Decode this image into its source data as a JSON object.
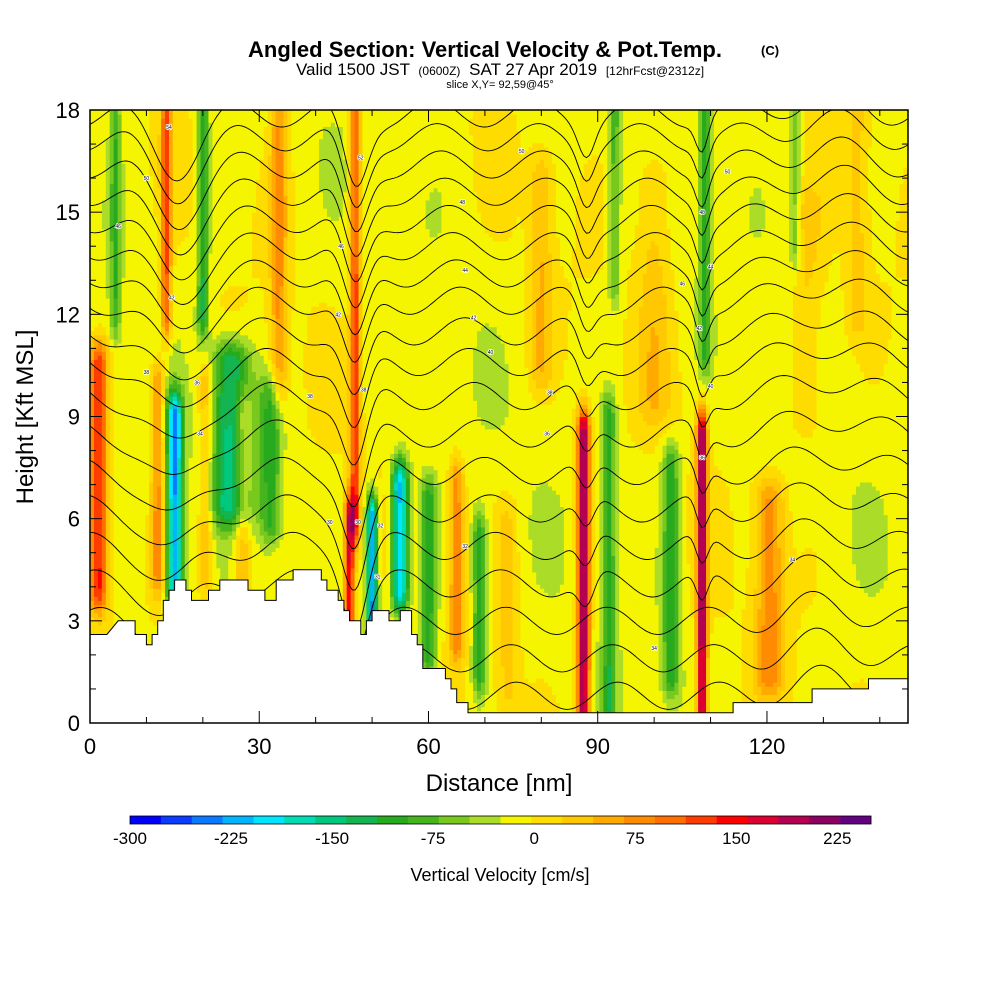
{
  "title": {
    "main": "Angled Section: Vertical Velocity & Pot.Temp.",
    "units_tag": "(C)",
    "valid_prefix": "Valid 1500 JST",
    "zulu": "(0600Z)",
    "valid_suffix": "SAT 27 Apr 2019",
    "forecast": "[12hrFcst@2312z]",
    "slice": "slice X,Y= 92,59@45°"
  },
  "chart_data": {
    "type": "heatmap",
    "xlabel": "Distance [nm]",
    "ylabel": "Height [Kft MSL]",
    "xlim": [
      0,
      145
    ],
    "ylim": [
      0,
      18
    ],
    "x_ticks": [
      0,
      30,
      60,
      90,
      120
    ],
    "x_tick_labels": [
      "0",
      "30",
      "60",
      "90",
      "120"
    ],
    "y_ticks": [
      0,
      3,
      6,
      9,
      12,
      15,
      18
    ],
    "y_tick_labels": [
      "0",
      "3",
      "6",
      "9",
      "12",
      "15",
      "18"
    ],
    "colorbar": {
      "title": "Vertical Velocity [cm/s]",
      "min": -300,
      "max": 250,
      "step": 25,
      "tick_values": [
        -300,
        -225,
        -150,
        -75,
        0,
        75,
        150,
        225
      ],
      "tick_labels": [
        "-300",
        "-225",
        "-150",
        "-75",
        "0",
        "75",
        "150",
        "225"
      ],
      "colors": [
        "#0000ff",
        "#0a3cff",
        "#0a78ff",
        "#00b4ff",
        "#00e6ff",
        "#00dcb4",
        "#00c87d",
        "#14b450",
        "#28aa1e",
        "#46b41e",
        "#78c81e",
        "#aadc28",
        "#f5f500",
        "#ffdc00",
        "#ffc800",
        "#ffaa00",
        "#ff8c00",
        "#ff6e00",
        "#ff3c00",
        "#ff0000",
        "#dc0032",
        "#b40050",
        "#8c0064",
        "#640082"
      ]
    },
    "terrain_kft": [
      [
        0,
        2.6
      ],
      [
        3,
        2.6
      ],
      [
        5,
        3.0
      ],
      [
        8,
        3.0
      ],
      [
        8,
        2.6
      ],
      [
        10,
        2.6
      ],
      [
        10,
        2.3
      ],
      [
        11,
        2.3
      ],
      [
        11,
        2.6
      ],
      [
        12,
        2.6
      ],
      [
        12,
        3.0
      ],
      [
        13,
        3.0
      ],
      [
        13,
        3.6
      ],
      [
        14,
        3.6
      ],
      [
        14,
        3.9
      ],
      [
        15,
        3.9
      ],
      [
        15,
        4.2
      ],
      [
        17,
        4.2
      ],
      [
        17,
        3.9
      ],
      [
        18,
        3.9
      ],
      [
        18,
        3.6
      ],
      [
        21,
        3.6
      ],
      [
        21,
        3.9
      ],
      [
        23,
        3.9
      ],
      [
        23,
        4.2
      ],
      [
        28,
        4.2
      ],
      [
        28,
        3.9
      ],
      [
        31,
        3.9
      ],
      [
        31,
        3.6
      ],
      [
        33,
        3.6
      ],
      [
        33,
        4.2
      ],
      [
        36,
        4.2
      ],
      [
        36,
        4.5
      ],
      [
        41,
        4.5
      ],
      [
        41,
        4.2
      ],
      [
        42,
        4.2
      ],
      [
        42,
        3.9
      ],
      [
        44,
        3.9
      ],
      [
        44,
        3.6
      ],
      [
        45,
        3.6
      ],
      [
        45,
        3.3
      ],
      [
        46,
        3.3
      ],
      [
        46,
        3.0
      ],
      [
        48,
        3.0
      ],
      [
        48,
        2.6
      ],
      [
        49,
        2.6
      ],
      [
        49,
        3.0
      ],
      [
        50,
        3.0
      ],
      [
        50,
        3.3
      ],
      [
        53,
        3.3
      ],
      [
        53,
        3.0
      ],
      [
        55,
        3.0
      ],
      [
        55,
        3.3
      ],
      [
        57,
        3.3
      ],
      [
        57,
        2.6
      ],
      [
        58,
        2.6
      ],
      [
        58,
        2.3
      ],
      [
        59,
        2.3
      ],
      [
        59,
        1.6
      ],
      [
        63,
        1.6
      ],
      [
        63,
        1.3
      ],
      [
        64,
        1.3
      ],
      [
        64,
        1.0
      ],
      [
        65,
        1.0
      ],
      [
        65,
        0.6
      ],
      [
        67,
        0.6
      ],
      [
        67,
        0.3
      ],
      [
        114,
        0.3
      ],
      [
        114,
        0.6
      ],
      [
        128,
        0.6
      ],
      [
        128,
        1.0
      ],
      [
        138,
        1.0
      ],
      [
        138,
        1.3
      ],
      [
        144,
        1.3
      ],
      [
        145,
        1.3
      ]
    ],
    "updrafts": [
      {
        "x": 1.5,
        "zlo": 4.0,
        "zhi": 10.5,
        "w": 1.6,
        "amp": 160
      },
      {
        "x": 12.0,
        "zlo": 4.5,
        "zhi": 10.0,
        "w": 1.2,
        "amp": 95
      },
      {
        "x": 13.5,
        "zlo": 12.0,
        "zhi": 18.0,
        "w": 0.9,
        "amp": 140
      },
      {
        "x": 20.5,
        "zlo": 4.5,
        "zhi": 10.0,
        "w": 1.3,
        "amp": 70
      },
      {
        "x": 27.0,
        "zlo": 4.0,
        "zhi": 9.0,
        "w": 1.5,
        "amp": 70
      },
      {
        "x": 33.5,
        "zlo": 10.0,
        "zhi": 18.0,
        "w": 1.5,
        "amp": 85
      },
      {
        "x": 46.0,
        "zlo": 3.0,
        "zhi": 6.0,
        "w": 0.9,
        "amp": 190
      },
      {
        "x": 47.0,
        "zlo": 6.0,
        "zhi": 18.0,
        "w": 0.9,
        "amp": 150
      },
      {
        "x": 65.0,
        "zlo": 2.5,
        "zhi": 7.0,
        "w": 1.3,
        "amp": 100
      },
      {
        "x": 74.0,
        "zlo": 1.0,
        "zhi": 6.0,
        "w": 2.0,
        "amp": 40
      },
      {
        "x": 87.5,
        "zlo": 0.5,
        "zhi": 8.5,
        "w": 1.1,
        "amp": 245
      },
      {
        "x": 108.5,
        "zlo": 0.5,
        "zhi": 8.5,
        "w": 0.9,
        "amp": 245
      },
      {
        "x": 120.5,
        "zlo": 1.5,
        "zhi": 6.5,
        "w": 2.5,
        "amp": 95
      },
      {
        "x": 80.0,
        "zlo": 10.5,
        "zhi": 16.0,
        "w": 2.0,
        "amp": 55
      },
      {
        "x": 100.0,
        "zlo": 9.5,
        "zhi": 16.0,
        "w": 3.0,
        "amp": 45
      },
      {
        "x": 127.0,
        "zlo": 9.0,
        "zhi": 15.0,
        "w": 3.0,
        "amp": 40
      },
      {
        "x": 136.0,
        "zlo": 12.0,
        "zhi": 18.0,
        "w": 2.0,
        "amp": 40
      }
    ],
    "downdrafts": [
      {
        "x": 4.5,
        "zlo": 12.0,
        "zhi": 18.0,
        "w": 0.9,
        "amp": -85
      },
      {
        "x": 15.0,
        "zlo": 4.0,
        "zhi": 9.0,
        "w": 1.4,
        "amp": -240
      },
      {
        "x": 20.0,
        "zlo": 12.0,
        "zhi": 18.0,
        "w": 1.0,
        "amp": -120
      },
      {
        "x": 25.0,
        "zlo": 6.5,
        "zhi": 10.5,
        "w": 3.5,
        "amp": -150
      },
      {
        "x": 32.0,
        "zlo": 6.0,
        "zhi": 9.5,
        "w": 2.0,
        "amp": -100
      },
      {
        "x": 50.0,
        "zlo": 3.0,
        "zhi": 6.0,
        "w": 1.0,
        "amp": -250
      },
      {
        "x": 55.0,
        "zlo": 4.0,
        "zhi": 7.0,
        "w": 1.5,
        "amp": -230
      },
      {
        "x": 60.0,
        "zlo": 2.0,
        "zhi": 6.5,
        "w": 1.5,
        "amp": -110
      },
      {
        "x": 69.0,
        "zlo": 1.5,
        "zhi": 5.5,
        "w": 1.2,
        "amp": -110
      },
      {
        "x": 92.0,
        "zlo": 0.5,
        "zhi": 9.0,
        "w": 1.2,
        "amp": -100
      },
      {
        "x": 103.0,
        "zlo": 1.5,
        "zhi": 7.5,
        "w": 1.5,
        "amp": -110
      },
      {
        "x": 93.0,
        "zlo": 13.0,
        "zhi": 18.0,
        "w": 1.0,
        "amp": -75
      },
      {
        "x": 109.0,
        "zlo": 11.0,
        "zhi": 18.0,
        "w": 1.0,
        "amp": -95
      },
      {
        "x": 125.0,
        "zlo": 14.0,
        "zhi": 18.0,
        "w": 1.0,
        "amp": -70
      }
    ],
    "isentropes": {
      "base_kft": [
        0.8,
        1.9,
        3.0,
        4.1,
        5.2,
        6.3,
        7.4,
        8.5,
        9.6,
        10.6,
        11.5,
        12.4,
        13.2,
        14.0,
        14.8,
        15.6,
        16.4,
        17.2,
        17.9
      ]
    },
    "contour_labels": [
      {
        "x": 14.0,
        "z": 17.5,
        "text": "54"
      },
      {
        "x": 10.0,
        "z": 16.0,
        "text": "50"
      },
      {
        "x": 5.0,
        "z": 14.6,
        "text": "46"
      },
      {
        "x": 14.5,
        "z": 12.5,
        "text": "42"
      },
      {
        "x": 10.0,
        "z": 10.3,
        "text": "38"
      },
      {
        "x": 19.0,
        "z": 10.0,
        "text": "36"
      },
      {
        "x": 19.5,
        "z": 8.5,
        "text": "34"
      },
      {
        "x": 39.0,
        "z": 9.6,
        "text": "38"
      },
      {
        "x": 44.5,
        "z": 14.0,
        "text": "46"
      },
      {
        "x": 48.0,
        "z": 16.6,
        "text": "52"
      },
      {
        "x": 44.0,
        "z": 12.0,
        "text": "42"
      },
      {
        "x": 48.5,
        "z": 9.8,
        "text": "38"
      },
      {
        "x": 42.5,
        "z": 5.9,
        "text": "30"
      },
      {
        "x": 47.5,
        "z": 5.9,
        "text": "30"
      },
      {
        "x": 51.5,
        "z": 5.8,
        "text": "32"
      },
      {
        "x": 51.0,
        "z": 4.3,
        "text": "31"
      },
      {
        "x": 66.5,
        "z": 5.2,
        "text": "32"
      },
      {
        "x": 66.0,
        "z": 15.3,
        "text": "48"
      },
      {
        "x": 66.5,
        "z": 13.3,
        "text": "44"
      },
      {
        "x": 68.0,
        "z": 11.9,
        "text": "42"
      },
      {
        "x": 71.0,
        "z": 10.9,
        "text": "40"
      },
      {
        "x": 76.5,
        "z": 16.8,
        "text": "50"
      },
      {
        "x": 81.5,
        "z": 9.7,
        "text": "38"
      },
      {
        "x": 81.0,
        "z": 8.5,
        "text": "36"
      },
      {
        "x": 100.0,
        "z": 2.2,
        "text": "34"
      },
      {
        "x": 105.0,
        "z": 12.9,
        "text": "46"
      },
      {
        "x": 108.5,
        "z": 15.0,
        "text": "48"
      },
      {
        "x": 113.0,
        "z": 16.2,
        "text": "50"
      },
      {
        "x": 110.0,
        "z": 13.4,
        "text": "44"
      },
      {
        "x": 108.0,
        "z": 11.6,
        "text": "42"
      },
      {
        "x": 110.0,
        "z": 9.9,
        "text": "40"
      },
      {
        "x": 108.5,
        "z": 7.8,
        "text": "36"
      },
      {
        "x": 124.5,
        "z": 4.8,
        "text": "34"
      }
    ]
  }
}
